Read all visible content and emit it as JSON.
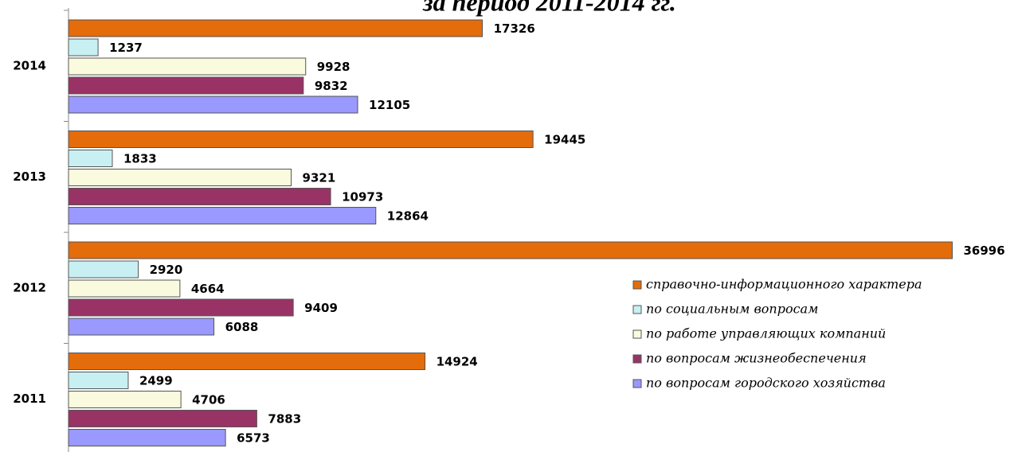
{
  "chart_data": {
    "type": "barh",
    "title": "за период 2011-2014 гг.",
    "categories": [
      "2014",
      "2013",
      "2012",
      "2011"
    ],
    "series": [
      {
        "name": "справочно-информационного характера",
        "color": "#e46c0a",
        "values": [
          17326,
          19445,
          36996,
          14924
        ]
      },
      {
        "name": "по социальным вопросам",
        "color": "#c8f0f2",
        "values": [
          1237,
          1833,
          2920,
          2499
        ]
      },
      {
        "name": "по работе управляющих компаний",
        "color": "#fafade",
        "values": [
          9928,
          9321,
          4664,
          4706
        ]
      },
      {
        "name": "по вопросам жизнеобеспечения",
        "color": "#993366",
        "values": [
          9832,
          10973,
          9409,
          7883
        ]
      },
      {
        "name": "по вопросам городского хозяйства",
        "color": "#9999ff",
        "values": [
          12105,
          12864,
          6088,
          6573
        ]
      }
    ],
    "xlim": [
      0,
      37000
    ],
    "legend": "right"
  }
}
